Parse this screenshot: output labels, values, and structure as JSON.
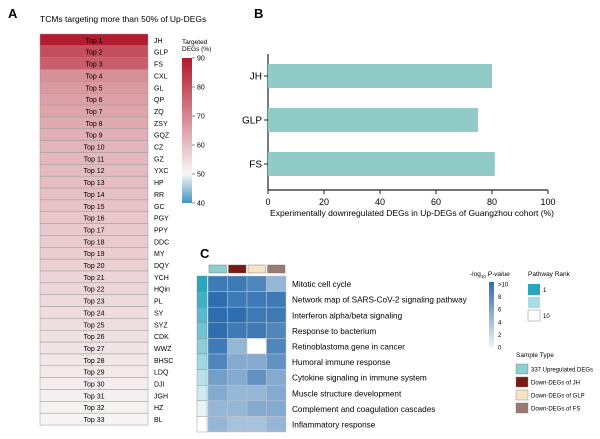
{
  "panels": {
    "a": {
      "letter": "A",
      "title": "TCMs targeting more than 50% of Up-DEGs",
      "rows": [
        {
          "rank": "Top 1",
          "tcm": "JH",
          "value": 90
        },
        {
          "rank": "Top 2",
          "tcm": "GLP",
          "value": 81
        },
        {
          "rank": "Top 3",
          "tcm": "FS",
          "value": 78
        },
        {
          "rank": "Top 4",
          "tcm": "CXL",
          "value": 69
        },
        {
          "rank": "Top 5",
          "tcm": "GL",
          "value": 67
        },
        {
          "rank": "Top 6",
          "tcm": "QP",
          "value": 66
        },
        {
          "rank": "Top 7",
          "tcm": "ZQ",
          "value": 65
        },
        {
          "rank": "Top 8",
          "tcm": "ZSY",
          "value": 64
        },
        {
          "rank": "Top 9",
          "tcm": "GQZ",
          "value": 63
        },
        {
          "rank": "Top 10",
          "tcm": "CZ",
          "value": 62
        },
        {
          "rank": "Top 11",
          "tcm": "GZ",
          "value": 61.5
        },
        {
          "rank": "Top 12",
          "tcm": "YXC",
          "value": 61
        },
        {
          "rank": "Top 13",
          "tcm": "HP",
          "value": 60.5
        },
        {
          "rank": "Top 14",
          "tcm": "RR",
          "value": 60
        },
        {
          "rank": "Top 15",
          "tcm": "GC",
          "value": 59.5
        },
        {
          "rank": "Top 16",
          "tcm": "PGY",
          "value": 59
        },
        {
          "rank": "Top 17",
          "tcm": "PPY",
          "value": 58.5
        },
        {
          "rank": "Top 18",
          "tcm": "DDC",
          "value": 58
        },
        {
          "rank": "Top 19",
          "tcm": "MY",
          "value": 57.5
        },
        {
          "rank": "Top 20",
          "tcm": "DQY",
          "value": 57
        },
        {
          "rank": "Top 21",
          "tcm": "YCH",
          "value": 56.5
        },
        {
          "rank": "Top 22",
          "tcm": "HQin",
          "value": 56
        },
        {
          "rank": "Top 23",
          "tcm": "PL",
          "value": 55.5
        },
        {
          "rank": "Top 24",
          "tcm": "SY",
          "value": 55
        },
        {
          "rank": "Top 25",
          "tcm": "SYZ",
          "value": 54.5
        },
        {
          "rank": "Top 26",
          "tcm": "CDK",
          "value": 54
        },
        {
          "rank": "Top 27",
          "tcm": "WWZ",
          "value": 53.5
        },
        {
          "rank": "Top 28",
          "tcm": "BHSC",
          "value": 53
        },
        {
          "rank": "Top 29",
          "tcm": "LDQ",
          "value": 52.5
        },
        {
          "rank": "Top 30",
          "tcm": "DJI",
          "value": 52
        },
        {
          "rank": "Top 31",
          "tcm": "JGH",
          "value": 51.5
        },
        {
          "rank": "Top 32",
          "tcm": "HZ",
          "value": 51
        },
        {
          "rank": "Top 33",
          "tcm": "BL",
          "value": 50.5
        }
      ],
      "legend": {
        "title_line1": "Targeted",
        "title_line2": "DEGs (%)",
        "ticks": [
          90,
          80,
          70,
          60,
          50,
          40
        ],
        "min": 40,
        "max": 90,
        "mid": 50
      },
      "colors": {
        "high": "#b2182b",
        "mid": "#f7f7f7",
        "low": "#4393c3"
      }
    },
    "b": {
      "letter": "B",
      "xlabel": "Experimentally downregulated DEGs in Up-DEGs of Guangzhou cohort (%)",
      "bar_color": "#90cbc8"
    },
    "c": {
      "letter": "C",
      "pathways": [
        "Mitotic cell cycle",
        "Network map of SARS-CoV-2 signaling pathway",
        "Interferon alpha/beta signaling",
        "Response to bacterium",
        "Retinoblastoma gene in cancer",
        "Humoral immune response",
        "Cytokine signaling in immune system",
        "Muscle structure development",
        "Complement and coagulation cascades",
        "Inflammatory response"
      ],
      "rank_values": [
        1,
        2,
        3,
        4,
        5,
        6,
        7,
        8,
        9,
        10
      ],
      "pvalue_matrix": [
        [
          9,
          9,
          8,
          4
        ],
        [
          10,
          9,
          9,
          9
        ],
        [
          10,
          10,
          9,
          9
        ],
        [
          10,
          9,
          9,
          8
        ],
        [
          9,
          4,
          0,
          8
        ],
        [
          8,
          5,
          5,
          7
        ],
        [
          6,
          5,
          7,
          5
        ],
        [
          5,
          4,
          4,
          5
        ],
        [
          4,
          4,
          5,
          5
        ],
        [
          4,
          3,
          3,
          4
        ]
      ],
      "column_colors": [
        "#8ecfcf",
        "#7b1a12",
        "#f7e3c6",
        "#9a7a72"
      ],
      "pvalue_legend": {
        "title_prefix": "-log",
        "title_sub": "10",
        "title_suffix": " P-value",
        "ticks": [
          ">10",
          "8",
          "6",
          "4",
          "2",
          "0"
        ]
      },
      "rank_legend": {
        "title": "Pathway Rank",
        "ticks": [
          "1",
          "10"
        ]
      },
      "sample_type": {
        "title": "Sample Type",
        "items": [
          {
            "label": "337 Upregulated DEGs",
            "color": "#8ecfcf"
          },
          {
            "label": "Down-DEGs of JH",
            "color": "#7b1a12"
          },
          {
            "label": "Down-DEGs of GLP",
            "color": "#f7e3c6"
          },
          {
            "label": "Down-DEGs of FS",
            "color": "#9a7a72"
          }
        ]
      }
    }
  },
  "chart_data": [
    {
      "type": "heatmap",
      "title": "TCMs targeting more than 50% of Up-DEGs",
      "categories": [
        "JH",
        "GLP",
        "FS",
        "CXL",
        "GL",
        "QP",
        "ZQ",
        "ZSY",
        "GQZ",
        "CZ",
        "GZ",
        "YXC",
        "HP",
        "RR",
        "GC",
        "PGY",
        "PPY",
        "DDC",
        "MY",
        "DQY",
        "YCH",
        "HQin",
        "PL",
        "SY",
        "SYZ",
        "CDK",
        "WWZ",
        "BHSC",
        "LDQ",
        "DJI",
        "JGH",
        "HZ",
        "BL"
      ],
      "legend_title": "Targeted DEGs (%)",
      "color_range": [
        40,
        90
      ]
    },
    {
      "type": "bar",
      "orientation": "horizontal",
      "categories": [
        "JH",
        "GLP",
        "FS"
      ],
      "values": [
        80,
        75,
        81
      ],
      "xlabel": "Experimentally downregulated DEGs in Up-DEGs of Guangzhou cohort (%)",
      "ylabel": "",
      "xlim": [
        0,
        100
      ],
      "xticks": [
        0,
        20,
        40,
        60,
        80,
        100
      ]
    },
    {
      "type": "heatmap",
      "rows": [
        "Mitotic cell cycle",
        "Network map of SARS-CoV-2 signaling pathway",
        "Interferon alpha/beta signaling",
        "Response to bacterium",
        "Retinoblastoma gene in cancer",
        "Humoral immune response",
        "Cytokine signaling in immune system",
        "Muscle structure development",
        "Complement and coagulation cascades",
        "Inflammatory response"
      ],
      "columns": [
        "337 Upregulated DEGs",
        "Down-DEGs of JH",
        "Down-DEGs of GLP",
        "Down-DEGs of FS"
      ],
      "legend_title": "-log10 P-value",
      "color_range": [
        0,
        10
      ]
    }
  ]
}
